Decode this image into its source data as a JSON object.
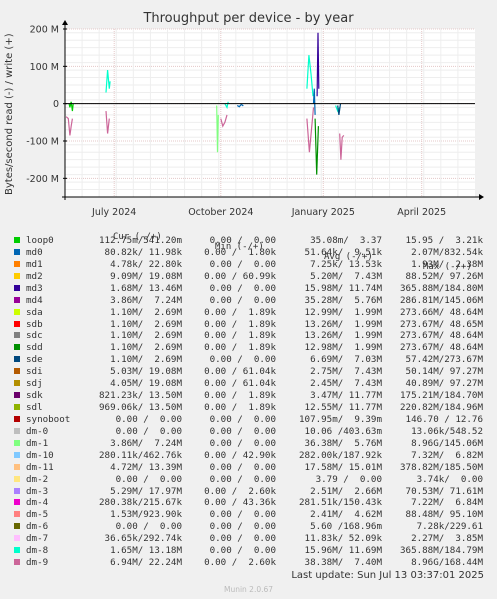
{
  "window": {
    "title": "Throughput per device - by year"
  },
  "side_label": "RRDTOOL / TOBI OETIKER",
  "footer": {
    "last_update": "Last update: Sun Jul 13 03:37:01 2025",
    "version": "Munin 2.0.67"
  },
  "legend_header": {
    "cur": "Cur (-/+)",
    "min": "Min (-/+)",
    "avg": "Avg (-/+)",
    "max": "Max (-/+)"
  },
  "legend": [
    {
      "name": "loop0",
      "color": "#00cc00",
      "cur": "112.75m/541.20m",
      "min": "0.00 /  0.00",
      "avg": "35.08m/  3.37",
      "max": "15.95 /  3.21k"
    },
    {
      "name": "md0",
      "color": "#0066b3",
      "cur": "80.82k/ 11.98k",
      "min": "0.00 /  1.80k",
      "avg": "51.64k/  9.51k",
      "max": "2.07M/832.54k"
    },
    {
      "name": "md1",
      "color": "#ff8000",
      "cur": "4.78k/ 22.80k",
      "min": "0.00 /  0.00",
      "avg": "7.25k/ 13.53k",
      "max": "1.93M/  2.38M"
    },
    {
      "name": "md2",
      "color": "#ffcc00",
      "cur": "9.09M/ 19.08M",
      "min": "0.00 / 60.99k",
      "avg": "5.20M/  7.43M",
      "max": "88.52M/ 97.26M"
    },
    {
      "name": "md3",
      "color": "#330099",
      "cur": "1.68M/ 13.46M",
      "min": "0.00 /  0.00",
      "avg": "15.98M/ 11.74M",
      "max": "365.88M/184.80M"
    },
    {
      "name": "md4",
      "color": "#990099",
      "cur": "3.86M/  7.24M",
      "min": "0.00 /  0.00",
      "avg": "35.28M/  5.76M",
      "max": "286.81M/145.06M"
    },
    {
      "name": "sda",
      "color": "#ccff00",
      "cur": "1.10M/  2.69M",
      "min": "0.00 /  1.89k",
      "avg": "12.99M/  1.99M",
      "max": "273.66M/ 48.64M"
    },
    {
      "name": "sdb",
      "color": "#ff0000",
      "cur": "1.10M/  2.69M",
      "min": "0.00 /  1.89k",
      "avg": "13.26M/  1.99M",
      "max": "273.67M/ 48.65M"
    },
    {
      "name": "sdc",
      "color": "#808080",
      "cur": "1.10M/  2.69M",
      "min": "0.00 /  1.89k",
      "avg": "13.26M/  1.99M",
      "max": "273.67M/ 48.64M"
    },
    {
      "name": "sdd",
      "color": "#008f00",
      "cur": "1.10M/  2.69M",
      "min": "0.00 /  1.89k",
      "avg": "12.98M/  1.99M",
      "max": "273.67M/ 48.64M"
    },
    {
      "name": "sde",
      "color": "#00487d",
      "cur": "1.10M/  2.69M",
      "min": "0.00 /  0.00",
      "avg": "6.69M/  7.03M",
      "max": "57.42M/273.67M"
    },
    {
      "name": "sdi",
      "color": "#b35a00",
      "cur": "5.03M/ 19.08M",
      "min": "0.00 / 61.04k",
      "avg": "2.75M/  7.43M",
      "max": "50.14M/ 97.27M"
    },
    {
      "name": "sdj",
      "color": "#b38f00",
      "cur": "4.05M/ 19.08M",
      "min": "0.00 / 61.04k",
      "avg": "2.45M/  7.43M",
      "max": "40.89M/ 97.27M"
    },
    {
      "name": "sdk",
      "color": "#6b006b",
      "cur": "821.23k/ 13.50M",
      "min": "0.00 /  1.89k",
      "avg": "3.47M/ 11.77M",
      "max": "175.21M/184.70M"
    },
    {
      "name": "sdl",
      "color": "#8fb300",
      "cur": "969.06k/ 13.50M",
      "min": "0.00 /  1.89k",
      "avg": "12.55M/ 11.77M",
      "max": "220.82M/184.96M"
    },
    {
      "name": "synoboot",
      "color": "#b30000",
      "cur": "0.00 /  0.00",
      "min": "0.00 /  0.00",
      "avg": "107.95m/  9.39m",
      "max": "146.70 / 12.76"
    },
    {
      "name": "dm-0",
      "color": "#bebebe",
      "cur": "0.00 /  0.00",
      "min": "0.00 /  0.00",
      "avg": "10.06 /403.63m",
      "max": "13.06k/548.52"
    },
    {
      "name": "dm-1",
      "color": "#80ff80",
      "cur": "3.86M/  7.24M",
      "min": "0.00 /  0.00",
      "avg": "36.38M/  5.76M",
      "max": "8.96G/145.06M"
    },
    {
      "name": "dm-10",
      "color": "#80c9ff",
      "cur": "280.11k/462.76k",
      "min": "0.00 / 42.90k",
      "avg": "282.00k/187.92k",
      "max": "7.32M/  6.82M"
    },
    {
      "name": "dm-11",
      "color": "#ffc080",
      "cur": "4.72M/ 13.39M",
      "min": "0.00 /  0.00",
      "avg": "17.58M/ 15.01M",
      "max": "378.82M/185.50M"
    },
    {
      "name": "dm-2",
      "color": "#ffe680",
      "cur": "0.00 /  0.00",
      "min": "0.00 /  0.00",
      "avg": "3.79 /  0.00",
      "max": "3.74k/  0.00"
    },
    {
      "name": "dm-3",
      "color": "#aa80ff",
      "cur": "5.29M/ 17.97M",
      "min": "0.00 /  2.60k",
      "avg": "2.51M/  2.66M",
      "max": "70.53M/ 71.61M"
    },
    {
      "name": "dm-4",
      "color": "#ee00cc",
      "cur": "280.38k/215.67k",
      "min": "0.00 / 43.36k",
      "avg": "281.51k/150.43k",
      "max": "7.22M/  6.84M"
    },
    {
      "name": "dm-5",
      "color": "#ff8080",
      "cur": "1.53M/923.90k",
      "min": "0.00 /  0.00",
      "avg": "2.41M/  4.62M",
      "max": "88.48M/ 95.10M"
    },
    {
      "name": "dm-6",
      "color": "#666600",
      "cur": "0.00 /  0.00",
      "min": "0.00 /  0.00",
      "avg": "5.60 /168.96m",
      "max": "7.28k/229.61"
    },
    {
      "name": "dm-7",
      "color": "#ffbfff",
      "cur": "36.65k/292.74k",
      "min": "0.00 /  0.00",
      "avg": "11.83k/ 52.09k",
      "max": "2.27M/  3.85M"
    },
    {
      "name": "dm-8",
      "color": "#00ffcc",
      "cur": "1.65M/ 13.18M",
      "min": "0.00 /  0.00",
      "avg": "15.96M/ 11.69M",
      "max": "365.88M/184.79M"
    },
    {
      "name": "dm-9",
      "color": "#cc6699",
      "cur": "6.94M/ 22.24M",
      "min": "0.00 /  2.60k",
      "avg": "38.38M/  7.40M",
      "max": "8.96G/168.44M"
    }
  ],
  "chart_data": {
    "type": "line",
    "title": "Throughput per device - by year",
    "ylabel": "Bytes/second read (-) / write (+)",
    "ylim": [
      -250,
      200
    ],
    "yunit": "M",
    "y_ticks": [
      {
        "value": 200,
        "label": "200 M"
      },
      {
        "value": 100,
        "label": "100 M"
      },
      {
        "value": 0,
        "label": "0"
      },
      {
        "value": -100,
        "label": "-100 M"
      },
      {
        "value": -200,
        "label": "-200 M"
      }
    ],
    "x_ticks": [
      {
        "t": 0.12,
        "label": "July 2024"
      },
      {
        "t": 0.38,
        "label": "October 2024"
      },
      {
        "t": 0.63,
        "label": "January 2025"
      },
      {
        "t": 0.87,
        "label": "April 2025"
      }
    ],
    "grid": true,
    "series": [
      {
        "color": "#00cc00",
        "points": [
          [
            0.01,
            0
          ],
          [
            0.012,
            -10
          ],
          [
            0.015,
            5
          ],
          [
            0.018,
            -20
          ],
          [
            0.02,
            0
          ]
        ]
      },
      {
        "color": "#cc6699",
        "points": [
          [
            0.003,
            -35
          ],
          [
            0.008,
            -40
          ],
          [
            0.012,
            -85
          ],
          [
            0.015,
            -60
          ],
          [
            0.018,
            -40
          ]
        ]
      },
      {
        "color": "#00ffcc",
        "points": [
          [
            0.1,
            30
          ],
          [
            0.104,
            90
          ],
          [
            0.108,
            40
          ],
          [
            0.11,
            60
          ]
        ]
      },
      {
        "color": "#cc6699",
        "points": [
          [
            0.1,
            -20
          ],
          [
            0.104,
            -80
          ],
          [
            0.108,
            -40
          ]
        ]
      },
      {
        "color": "#80ff80",
        "points": [
          [
            0.37,
            -5
          ],
          [
            0.372,
            -130
          ],
          [
            0.374,
            -30
          ]
        ]
      },
      {
        "color": "#cc6699",
        "points": [
          [
            0.38,
            -40
          ],
          [
            0.385,
            -60
          ],
          [
            0.39,
            -50
          ],
          [
            0.395,
            -30
          ]
        ]
      },
      {
        "color": "#00ffcc",
        "points": [
          [
            0.39,
            0
          ],
          [
            0.395,
            -10
          ],
          [
            0.398,
            5
          ]
        ]
      },
      {
        "color": "#0066b3",
        "points": [
          [
            0.42,
            -5
          ],
          [
            0.425,
            -8
          ],
          [
            0.43,
            -2
          ],
          [
            0.435,
            -6
          ]
        ]
      },
      {
        "color": "#00ffcc",
        "points": [
          [
            0.59,
            40
          ],
          [
            0.595,
            130
          ],
          [
            0.6,
            80
          ],
          [
            0.605,
            20
          ]
        ]
      },
      {
        "color": "#cc6699",
        "points": [
          [
            0.59,
            -40
          ],
          [
            0.596,
            -130
          ],
          [
            0.602,
            -60
          ],
          [
            0.606,
            -10
          ]
        ]
      },
      {
        "color": "#0066b3",
        "points": [
          [
            0.606,
            0
          ],
          [
            0.608,
            40
          ],
          [
            0.61,
            -30
          ]
        ]
      },
      {
        "color": "#330099",
        "points": [
          [
            0.615,
            20
          ],
          [
            0.617,
            190
          ],
          [
            0.619,
            40
          ]
        ]
      },
      {
        "color": "#008f00",
        "points": [
          [
            0.61,
            -40
          ],
          [
            0.614,
            -190
          ],
          [
            0.618,
            -60
          ]
        ]
      },
      {
        "color": "#00ffcc",
        "points": [
          [
            0.66,
            -5
          ],
          [
            0.665,
            -20
          ],
          [
            0.67,
            -10
          ]
        ]
      },
      {
        "color": "#cc6699",
        "points": [
          [
            0.67,
            -80
          ],
          [
            0.673,
            -150
          ],
          [
            0.676,
            -90
          ],
          [
            0.68,
            -85
          ]
        ]
      },
      {
        "color": "#00487d",
        "points": [
          [
            0.665,
            -5
          ],
          [
            0.668,
            -30
          ],
          [
            0.672,
            0
          ]
        ]
      }
    ]
  }
}
